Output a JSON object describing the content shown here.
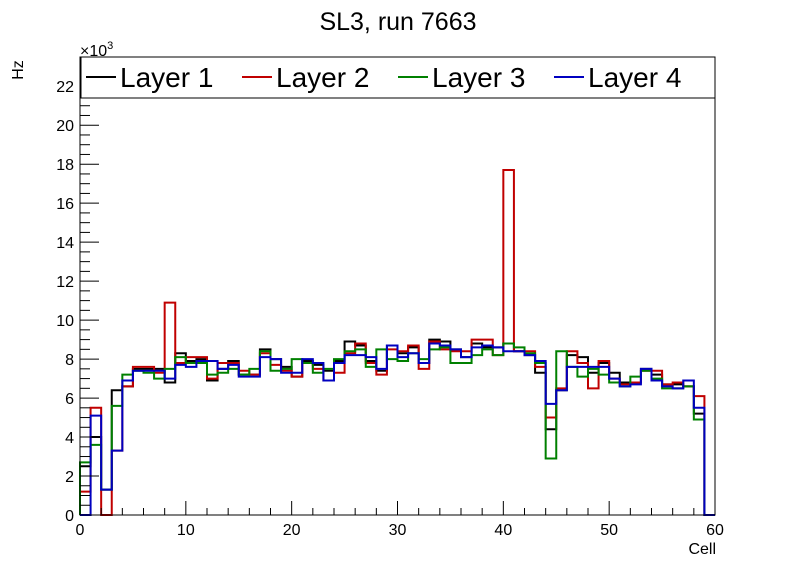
{
  "chart_data": {
    "type": "step",
    "title": "SL3, run 7663",
    "xlabel": "Cell",
    "ylabel": "Hz",
    "y_multiplier_label": "×10",
    "y_multiplier_exp": "3",
    "xlim": [
      0,
      60
    ],
    "ylim": [
      0,
      23.5
    ],
    "x_ticks": [
      0,
      10,
      20,
      30,
      40,
      50,
      60
    ],
    "y_ticks": [
      0,
      2,
      4,
      6,
      8,
      10,
      12,
      14,
      16,
      18,
      20,
      22
    ],
    "bin_edges_start": 0,
    "bin_width": 1,
    "legend_position": "top",
    "series": [
      {
        "name": "Layer 1",
        "color": "#000000",
        "values": [
          2.5,
          4.0,
          1.3,
          6.4,
          6.6,
          7.5,
          7.5,
          7.5,
          6.8,
          8.3,
          7.9,
          8.0,
          6.9,
          7.5,
          7.9,
          7.2,
          7.2,
          8.5,
          8.0,
          7.6,
          7.1,
          7.9,
          7.7,
          7.4,
          7.9,
          8.9,
          8.7,
          7.9,
          7.4,
          8.7,
          8.3,
          8.6,
          7.8,
          9.0,
          8.9,
          8.5,
          8.1,
          8.8,
          8.6,
          8.6,
          8.8,
          8.4,
          8.2,
          7.3,
          4.4,
          6.4,
          8.2,
          8.1,
          7.3,
          7.8,
          7.3,
          6.8,
          6.8,
          7.5,
          7.2,
          6.7,
          6.7,
          6.6,
          5.2,
          0.0
        ]
      },
      {
        "name": "Layer 2",
        "color": "#c00000",
        "values": [
          1.2,
          5.5,
          0.0,
          3.3,
          6.6,
          7.6,
          7.6,
          7.3,
          10.9,
          7.8,
          8.1,
          8.1,
          7.0,
          7.8,
          7.8,
          7.4,
          7.2,
          8.3,
          7.7,
          7.4,
          7.1,
          7.8,
          7.5,
          6.9,
          7.3,
          8.3,
          8.8,
          7.8,
          7.2,
          8.5,
          8.4,
          8.7,
          7.5,
          8.9,
          8.5,
          8.4,
          8.4,
          9.0,
          9.0,
          8.2,
          17.7,
          8.4,
          8.4,
          7.6,
          5.0,
          6.5,
          8.4,
          7.8,
          6.5,
          7.9,
          7.0,
          6.7,
          6.8,
          7.4,
          7.4,
          6.7,
          6.8,
          6.6,
          6.1,
          0.0
        ]
      },
      {
        "name": "Layer 3",
        "color": "#008000",
        "values": [
          2.7,
          3.6,
          1.3,
          5.6,
          7.2,
          7.4,
          7.3,
          7.0,
          7.5,
          8.1,
          7.8,
          7.8,
          7.2,
          7.3,
          7.5,
          7.2,
          7.5,
          8.4,
          7.4,
          7.5,
          8.0,
          7.8,
          7.3,
          7.5,
          8.0,
          8.4,
          8.5,
          7.6,
          8.5,
          8.0,
          7.9,
          8.3,
          8.0,
          8.5,
          8.6,
          7.8,
          7.8,
          8.2,
          8.5,
          8.2,
          8.8,
          8.6,
          8.3,
          7.8,
          2.9,
          8.4,
          7.6,
          7.1,
          7.5,
          7.2,
          6.8,
          6.6,
          7.1,
          7.4,
          7.0,
          6.5,
          6.5,
          6.6,
          4.9,
          0.0
        ]
      },
      {
        "name": "Layer 4",
        "color": "#0000c0",
        "values": [
          0.0,
          5.1,
          1.3,
          3.3,
          6.9,
          7.4,
          7.4,
          7.4,
          7.0,
          7.7,
          7.6,
          7.9,
          7.9,
          7.5,
          7.7,
          7.1,
          7.1,
          8.1,
          8.0,
          7.3,
          7.3,
          8.0,
          7.8,
          6.9,
          7.8,
          8.2,
          8.2,
          8.1,
          7.5,
          8.7,
          8.1,
          8.3,
          7.8,
          8.8,
          8.7,
          8.5,
          8.1,
          8.6,
          8.7,
          8.6,
          8.4,
          8.4,
          8.2,
          7.9,
          5.7,
          6.4,
          7.6,
          7.6,
          7.6,
          7.6,
          7.0,
          6.6,
          6.7,
          7.5,
          6.9,
          6.6,
          6.5,
          6.9,
          5.5,
          0.0
        ]
      }
    ]
  }
}
